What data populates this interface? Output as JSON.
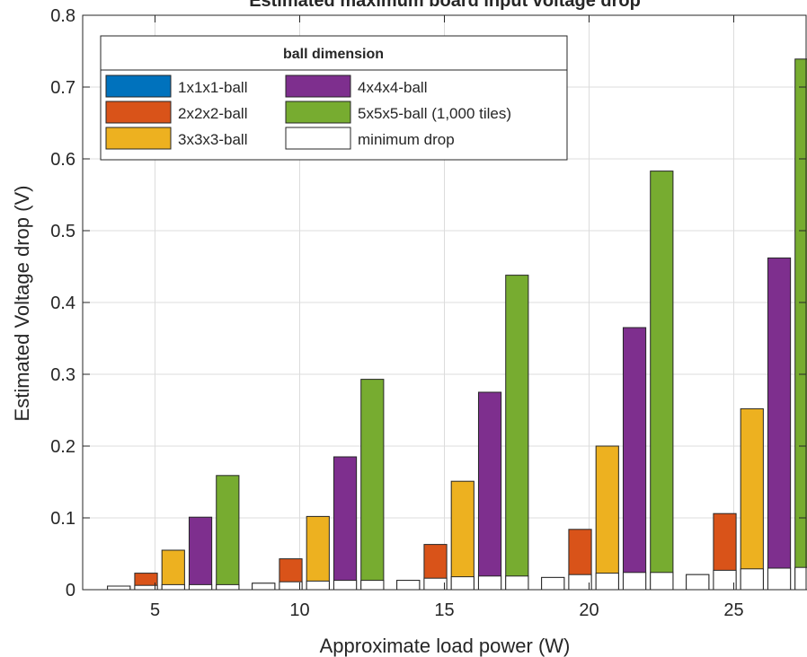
{
  "chart_data": {
    "type": "bar",
    "title": "Estimated maximum board input voltage drop",
    "xlabel": "Approximate load power (W)",
    "ylabel": "Estimated Voltage drop (V)",
    "categories": [
      "5",
      "10",
      "15",
      "20",
      "25"
    ],
    "xlim": [
      2.5,
      27.5
    ],
    "ylim": [
      0,
      0.8
    ],
    "yticks": [
      "0",
      "0.1",
      "0.2",
      "0.3",
      "0.4",
      "0.5",
      "0.6",
      "0.7",
      "0.8"
    ],
    "grid": true,
    "legend": {
      "title": "ball dimension",
      "placement": "top-left",
      "columns": 2
    },
    "series": [
      {
        "name": "1x1x1-ball",
        "color": "#0072BD",
        "values": [
          0.005,
          0.009,
          0.013,
          0.017,
          0.021
        ]
      },
      {
        "name": "2x2x2-ball",
        "color": "#D95319",
        "values": [
          0.023,
          0.043,
          0.063,
          0.084,
          0.106
        ]
      },
      {
        "name": "3x3x3-ball",
        "color": "#EDB120",
        "values": [
          0.055,
          0.102,
          0.151,
          0.2,
          0.252
        ]
      },
      {
        "name": "4x4x4-ball",
        "color": "#7E2F8E",
        "values": [
          0.101,
          0.185,
          0.275,
          0.365,
          0.462
        ]
      },
      {
        "name": "5x5x5-ball (1,000 tiles)",
        "color": "#77AC30",
        "values": [
          0.159,
          0.293,
          0.438,
          0.583,
          0.739
        ]
      },
      {
        "name": "minimum drop",
        "color": "#FFFFFF",
        "values": [
          0.005,
          0.009,
          0.013,
          0.017,
          0.021
        ]
      }
    ],
    "minimum_drop_overlay": [
      [
        0.005,
        0.006,
        0.007,
        0.007,
        0.007
      ],
      [
        0.009,
        0.011,
        0.012,
        0.013,
        0.013
      ],
      [
        0.013,
        0.016,
        0.018,
        0.019,
        0.019
      ],
      [
        0.017,
        0.021,
        0.023,
        0.024,
        0.024
      ],
      [
        0.021,
        0.027,
        0.029,
        0.03,
        0.031
      ]
    ]
  }
}
